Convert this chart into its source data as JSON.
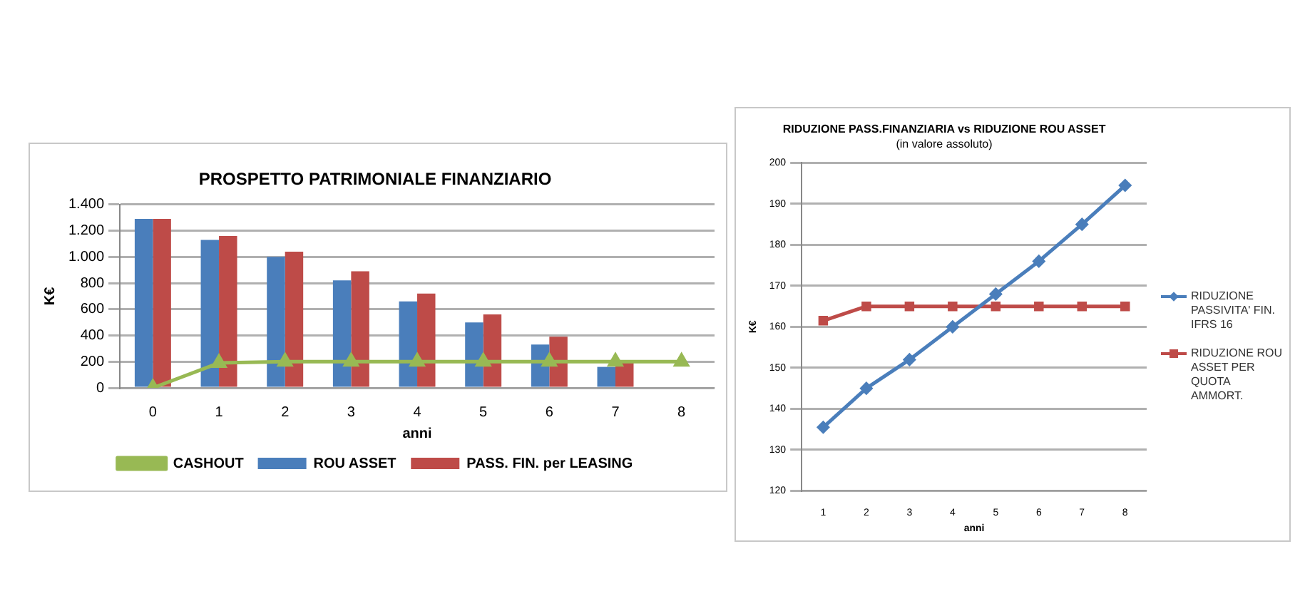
{
  "chart_data": [
    {
      "type": "bar",
      "title": "PROSPETTO PATRIMONIALE FINANZIARIO",
      "xlabel": "anni",
      "ylabel": "K€",
      "categories": [
        "0",
        "1",
        "2",
        "3",
        "4",
        "5",
        "6",
        "7",
        "8"
      ],
      "series": [
        {
          "name": "ROU ASSET",
          "color": "#4a7ebb",
          "values": [
            1290,
            1130,
            1000,
            820,
            660,
            500,
            330,
            160,
            null
          ]
        },
        {
          "name": "PASS. FIN. per LEASING",
          "color": "#be4b48",
          "values": [
            1290,
            1160,
            1040,
            890,
            720,
            560,
            390,
            200,
            null
          ]
        },
        {
          "name": "CASHOUT",
          "type": "line",
          "marker": "triangle",
          "color": "#98b954",
          "values": [
            0,
            190,
            200,
            200,
            200,
            200,
            200,
            200,
            200
          ]
        }
      ],
      "ylim": [
        0,
        1400
      ],
      "yticks": [
        0,
        200,
        400,
        600,
        800,
        {
          "value": 1000,
          "label": "1.000"
        },
        {
          "value": 1200,
          "label": "1.200"
        },
        {
          "value": 1400,
          "label": "1.400"
        }
      ],
      "grid": "y",
      "legend": "bottom"
    },
    {
      "type": "line",
      "title": "RIDUZIONE PASS.FINANZIARIA vs RIDUZIONE ROU ASSET",
      "subtitle": "(in valore assoluto)",
      "xlabel": "anni",
      "ylabel": "K€",
      "categories": [
        "1",
        "2",
        "3",
        "4",
        "5",
        "6",
        "7",
        "8"
      ],
      "series": [
        {
          "name": "RIDUZIONE PASSIVITA' FIN. IFRS 16",
          "color": "#4a7ebb",
          "marker": "diamond",
          "values": [
            135.5,
            145,
            152,
            160,
            168,
            176,
            185,
            194.5
          ]
        },
        {
          "name": "RIDUZIONE ROU ASSET PER QUOTA AMMORT.",
          "color": "#be4b48",
          "marker": "square",
          "values": [
            161.5,
            165,
            165,
            165,
            165,
            165,
            165,
            165
          ]
        }
      ],
      "ylim": [
        120,
        200
      ],
      "yticks": [
        120,
        130,
        140,
        150,
        160,
        170,
        180,
        190,
        200
      ],
      "grid": "y",
      "legend": "right"
    }
  ]
}
